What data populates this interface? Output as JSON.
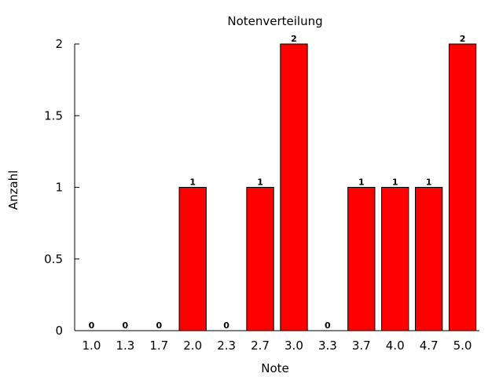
{
  "chart_data": {
    "type": "bar",
    "title": "Notenverteilung",
    "xlabel": "Note",
    "ylabel": "Anzahl",
    "categories": [
      "1.0",
      "1.3",
      "1.7",
      "2.0",
      "2.3",
      "2.7",
      "3.0",
      "3.3",
      "3.7",
      "4.0",
      "4.7",
      "5.0"
    ],
    "values": [
      0,
      0,
      0,
      1,
      0,
      1,
      2,
      0,
      1,
      1,
      1,
      2
    ],
    "data_labels": [
      "0",
      "0",
      "0",
      "1",
      "0",
      "1",
      "2",
      "0",
      "1",
      "1",
      "1",
      "2"
    ],
    "ylim": [
      0,
      2
    ],
    "yticks": [
      0,
      0.5,
      1,
      1.5,
      2
    ],
    "ytick_labels": [
      "0",
      "0.5",
      "1",
      "1.5",
      "2"
    ],
    "grid": false,
    "legend": "none",
    "colors": {
      "bar": "#ff0000",
      "outline": "#000000"
    }
  }
}
